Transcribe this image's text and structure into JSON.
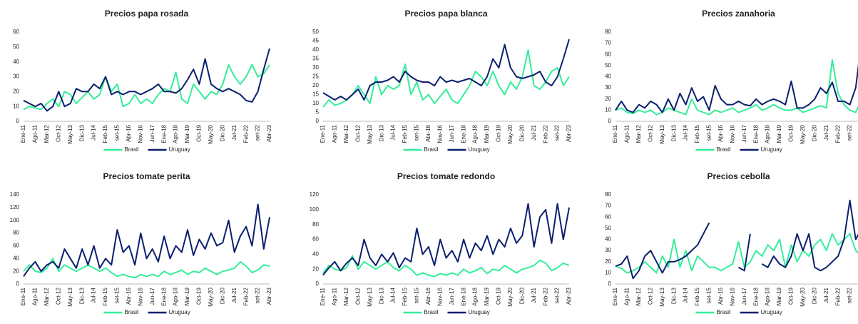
{
  "chart_data": [
    {
      "type": "line",
      "title": "Precios papa rosada",
      "categories": [
        "Ene-11",
        null,
        "Ago-11",
        null,
        "Mar-12",
        null,
        "Oct-12",
        null,
        "May-13",
        null,
        "Dic-13",
        null,
        "Jul-14",
        null,
        "Feb-15",
        null,
        "set-15",
        null,
        "Abr-16",
        null,
        "Nov-16",
        null,
        "Jun-17",
        null,
        "Ene-18",
        null,
        "Ago-18",
        null,
        "Mar-19",
        null,
        "Oct-19",
        null,
        "May-20",
        null,
        "Dic-20",
        null,
        "Jul-21",
        null,
        "Feb-22",
        null,
        "set-22",
        null,
        "Abr-23"
      ],
      "ylim": [
        0,
        60
      ],
      "yticks": [
        0,
        10,
        20,
        30,
        40,
        50,
        60
      ],
      "series": [
        {
          "name": "Brasil",
          "color": "#33ee99",
          "values": [
            8,
            10,
            9,
            8,
            12,
            15,
            10,
            20,
            18,
            12,
            16,
            20,
            15,
            18,
            30,
            20,
            25,
            10,
            12,
            18,
            12,
            15,
            12,
            18,
            22,
            20,
            33,
            15,
            12,
            25,
            20,
            15,
            20,
            18,
            25,
            38,
            30,
            25,
            30,
            38,
            30,
            32,
            38
          ]
        },
        {
          "name": "Uruguay",
          "color": "#0b1f6e",
          "values": [
            14,
            12,
            10,
            12,
            7,
            10,
            20,
            10,
            12,
            22,
            20,
            20,
            25,
            22,
            30,
            18,
            20,
            18,
            20,
            20,
            18,
            20,
            22,
            25,
            20,
            20,
            19,
            22,
            28,
            35,
            25,
            42,
            25,
            22,
            20,
            22,
            20,
            18,
            14,
            13,
            20,
            35,
            49
          ]
        }
      ]
    },
    {
      "type": "line",
      "title": "Precios papa blanca",
      "categories": [
        "Ene-11",
        null,
        "Ago-11",
        null,
        "Mar-12",
        null,
        "Oct-12",
        null,
        "May-13",
        null,
        "Dic-13",
        null,
        "Jul-14",
        null,
        "Feb-15",
        null,
        "set-15",
        null,
        "Abr-16",
        null,
        "Nov-16",
        null,
        "Jun-17",
        null,
        "Ene-18",
        null,
        "Ago-18",
        null,
        "Mar-19",
        null,
        "Oct-19",
        null,
        "May-20",
        null,
        "Dic-20",
        null,
        "Jul-21",
        null,
        "Feb-22",
        null,
        "set-22",
        null,
        "Abr-23"
      ],
      "ylim": [
        0,
        50
      ],
      "yticks": [
        0,
        5,
        10,
        15,
        20,
        25,
        30,
        35,
        40,
        45,
        50
      ],
      "series": [
        {
          "name": "Brasil",
          "color": "#33ee99",
          "values": [
            8,
            12,
            9,
            10,
            12,
            15,
            20,
            15,
            10,
            25,
            15,
            20,
            18,
            20,
            32,
            15,
            22,
            12,
            15,
            10,
            14,
            18,
            12,
            10,
            15,
            20,
            28,
            25,
            20,
            28,
            20,
            15,
            22,
            18,
            25,
            40,
            20,
            18,
            22,
            28,
            30,
            20,
            25
          ]
        },
        {
          "name": "Uruguay",
          "color": "#0b1f6e",
          "values": [
            16,
            14,
            12,
            14,
            12,
            15,
            18,
            12,
            20,
            22,
            22,
            23,
            25,
            22,
            28,
            25,
            23,
            22,
            22,
            20,
            25,
            22,
            23,
            22,
            23,
            24,
            22,
            20,
            25,
            35,
            30,
            43,
            30,
            25,
            24,
            25,
            26,
            28,
            22,
            20,
            25,
            35,
            46
          ]
        }
      ]
    },
    {
      "type": "line",
      "title": "Precios zanahoria",
      "categories": [
        "Ene-11",
        null,
        "Ago-11",
        null,
        "Mar-12",
        null,
        "Oct-12",
        null,
        "May-13",
        null,
        "Dic-13",
        null,
        "Jul-14",
        null,
        "Feb-15",
        null,
        "set-15",
        null,
        "Abr-16",
        null,
        "Nov-16",
        null,
        "Jun-17",
        null,
        "Ene-18",
        null,
        "Ago-18",
        null,
        "Mar-19",
        null,
        "Oct-19",
        null,
        "May-20",
        null,
        "Dic-20",
        null,
        "Jul-21",
        null,
        "Feb-22",
        null,
        "set-22",
        null,
        "Abr-23"
      ],
      "ylim": [
        0,
        80
      ],
      "yticks": [
        0,
        10,
        20,
        30,
        40,
        50,
        60,
        70,
        80
      ],
      "series": [
        {
          "name": "Brasil",
          "color": "#33ee99",
          "values": [
            10,
            12,
            8,
            7,
            10,
            8,
            10,
            6,
            8,
            12,
            10,
            8,
            6,
            20,
            10,
            8,
            6,
            10,
            8,
            10,
            12,
            8,
            10,
            12,
            15,
            10,
            12,
            15,
            12,
            10,
            10,
            12,
            8,
            10,
            12,
            14,
            12,
            55,
            25,
            15,
            10,
            8,
            20
          ]
        },
        {
          "name": "Uruguay",
          "color": "#0b1f6e",
          "values": [
            10,
            18,
            10,
            8,
            15,
            12,
            18,
            15,
            8,
            20,
            10,
            25,
            15,
            30,
            18,
            22,
            10,
            32,
            20,
            15,
            15,
            18,
            15,
            14,
            20,
            15,
            18,
            20,
            18,
            15,
            36,
            12,
            12,
            15,
            20,
            30,
            25,
            35,
            18,
            18,
            15,
            30,
            72
          ]
        }
      ]
    },
    {
      "type": "line",
      "title": "Precios tomate perita",
      "categories": [
        "Ene-11",
        null,
        "Ago-11",
        null,
        "Mar-12",
        null,
        "Oct-12",
        null,
        "May-13",
        null,
        "Dic-13",
        null,
        "Jul-14",
        null,
        "Feb-15",
        null,
        "set-15",
        null,
        "Abr-16",
        null,
        "Nov-16",
        null,
        "Jun-17",
        null,
        "Ene-18",
        null,
        "Ago-18",
        null,
        "Mar-19",
        null,
        "Oct-19",
        null,
        "May-20",
        null,
        "Dic-20",
        null,
        "Jul-21",
        null,
        "Feb-22",
        null,
        "set-22",
        null,
        "Abr-23"
      ],
      "ylim": [
        0,
        140
      ],
      "yticks": [
        0,
        20,
        40,
        60,
        80,
        100,
        120,
        140
      ],
      "series": [
        {
          "name": "Brasil",
          "color": "#33ee99",
          "values": [
            20,
            30,
            20,
            18,
            25,
            40,
            20,
            30,
            25,
            20,
            25,
            30,
            25,
            20,
            25,
            18,
            12,
            15,
            12,
            10,
            15,
            12,
            15,
            12,
            20,
            15,
            18,
            22,
            15,
            20,
            18,
            25,
            20,
            15,
            20,
            22,
            25,
            35,
            28,
            18,
            22,
            30,
            28
          ]
        },
        {
          "name": "Uruguay",
          "color": "#0b1f6e",
          "values": [
            12,
            25,
            35,
            20,
            30,
            35,
            25,
            55,
            40,
            25,
            55,
            30,
            60,
            25,
            40,
            30,
            85,
            50,
            60,
            30,
            80,
            40,
            55,
            35,
            75,
            40,
            60,
            50,
            85,
            45,
            70,
            55,
            80,
            60,
            65,
            100,
            50,
            75,
            90,
            60,
            125,
            55,
            105
          ]
        }
      ]
    },
    {
      "type": "line",
      "title": "Precios tomate redondo",
      "categories": [
        "Ene-11",
        null,
        "Ago-11",
        null,
        "Mar-12",
        null,
        "Oct-12",
        null,
        "May-13",
        null,
        "Dic-13",
        null,
        "Jul-14",
        null,
        "Feb-15",
        null,
        "set-15",
        null,
        "Abr-16",
        null,
        "Nov-16",
        null,
        "Jun-17",
        null,
        "Ene-18",
        null,
        "Ago-18",
        null,
        "Mar-19",
        null,
        "Oct-19",
        null,
        "May-20",
        null,
        "Dic-20",
        null,
        "Jul-21",
        null,
        "Feb-22",
        null,
        "set-22",
        null,
        "Abr-23"
      ],
      "ylim": [
        0,
        120
      ],
      "yticks": [
        0,
        20,
        40,
        60,
        80,
        100,
        120
      ],
      "series": [
        {
          "name": "Brasil",
          "color": "#33ee99",
          "values": [
            15,
            25,
            20,
            18,
            22,
            38,
            20,
            30,
            25,
            20,
            25,
            30,
            22,
            18,
            25,
            20,
            12,
            15,
            12,
            10,
            14,
            12,
            15,
            12,
            20,
            15,
            18,
            22,
            14,
            20,
            18,
            25,
            20,
            15,
            20,
            22,
            25,
            32,
            28,
            18,
            22,
            28,
            25
          ]
        },
        {
          "name": "Uruguay",
          "color": "#0b1f6e",
          "values": [
            12,
            22,
            30,
            18,
            28,
            35,
            25,
            60,
            35,
            25,
            40,
            30,
            42,
            22,
            35,
            30,
            75,
            40,
            50,
            25,
            60,
            35,
            45,
            30,
            60,
            35,
            55,
            45,
            65,
            40,
            60,
            50,
            75,
            55,
            65,
            108,
            50,
            90,
            100,
            55,
            108,
            60,
            103
          ]
        }
      ]
    },
    {
      "type": "line",
      "title": "Precios cebolla",
      "categories": [
        "Ene-11",
        null,
        "Ago-11",
        null,
        "Mar-12",
        null,
        "Oct-12",
        null,
        "May-13",
        null,
        "Dic-13",
        null,
        "Jul-14",
        null,
        "Feb-15",
        null,
        "set-15",
        null,
        "Abr-16",
        null,
        "Nov-16",
        null,
        "Jun-17",
        null,
        "Ene-18",
        null,
        "Ago-18",
        null,
        "Mar-19",
        null,
        "Oct-19",
        null,
        "May-20",
        null,
        "Dic-20",
        null,
        "Jul-21",
        null,
        "Feb-22",
        null,
        "set-22",
        null,
        "Abr-23"
      ],
      "ylim": [
        0,
        80
      ],
      "yticks": [
        0,
        10,
        20,
        30,
        40,
        50,
        60,
        70,
        80
      ],
      "series": [
        {
          "name": "Brasil",
          "color": "#33ee99",
          "values": [
            16,
            14,
            10,
            12,
            15,
            20,
            15,
            10,
            25,
            15,
            40,
            15,
            30,
            12,
            25,
            20,
            15,
            15,
            12,
            15,
            18,
            38,
            15,
            20,
            30,
            25,
            35,
            30,
            40,
            15,
            35,
            20,
            30,
            25,
            35,
            40,
            30,
            45,
            35,
            40,
            45,
            30,
            25
          ]
        },
        {
          "name": "Uruguay",
          "color": "#0b1f6e",
          "values": [
            16,
            18,
            25,
            5,
            12,
            25,
            30,
            20,
            10,
            20,
            20,
            22,
            25,
            30,
            35,
            45,
            55,
            null,
            null,
            null,
            null,
            15,
            12,
            45,
            null,
            18,
            15,
            25,
            18,
            15,
            25,
            45,
            30,
            45,
            15,
            12,
            15,
            20,
            25,
            40,
            75,
            40,
            50
          ]
        }
      ]
    }
  ]
}
